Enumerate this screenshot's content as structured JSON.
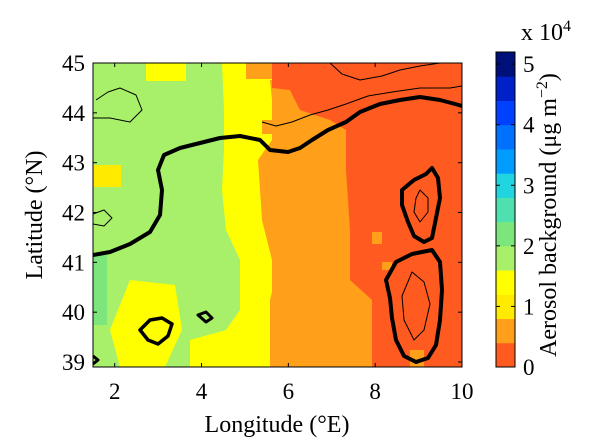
{
  "chart_data": {
    "type": "heatmap",
    "title": "",
    "xlabel": "Longitude (°E)",
    "ylabel": "Latitude (°N)",
    "xlim": [
      1.5,
      10
    ],
    "ylim": [
      38.9,
      45
    ],
    "xticks": [
      2,
      4,
      6,
      8,
      10
    ],
    "xtick_labels": [
      "2",
      "4",
      "6",
      "8",
      "10"
    ],
    "yticks": [
      39,
      40,
      41,
      42,
      43,
      44,
      45
    ],
    "ytick_labels": [
      "39",
      "40",
      "41",
      "42",
      "43",
      "44",
      "45"
    ],
    "colorbar": {
      "label": "Aerosol background (μg m⁻²)",
      "label_main": "Aerosol background (μg m",
      "label_exp": "−2",
      "label_close": ")",
      "scale_text": "x 10",
      "scale_exp": "4",
      "range": [
        0,
        52000
      ],
      "ticks": [
        0,
        1,
        2,
        3,
        4,
        5
      ],
      "tick_labels": [
        "0",
        "1",
        "2",
        "3",
        "4",
        "5"
      ],
      "colors": [
        "#ff5a1f",
        "#ff9f1a",
        "#ffea00",
        "#ffff00",
        "#a8f06a",
        "#7ce67d",
        "#4fe0b0",
        "#20d4e0",
        "#009cff",
        "#0070ff",
        "#0040ff",
        "#0020c8",
        "#00107a"
      ]
    },
    "grid": false,
    "regions_approx": [
      {
        "lon": [
          1.5,
          5.6
        ],
        "lat": [
          38.9,
          45
        ],
        "value_range": [
          10000,
          17500
        ],
        "note": "green/yellow west"
      },
      {
        "lon": [
          5.6,
          7.6
        ],
        "lat": [
          38.9,
          43.5
        ],
        "value_range": [
          5000,
          7500
        ],
        "note": "orange central"
      },
      {
        "lon": [
          7.6,
          10
        ],
        "lat": [
          38.9,
          44
        ],
        "value_range": [
          0,
          5000
        ],
        "note": "red-orange east"
      }
    ]
  }
}
